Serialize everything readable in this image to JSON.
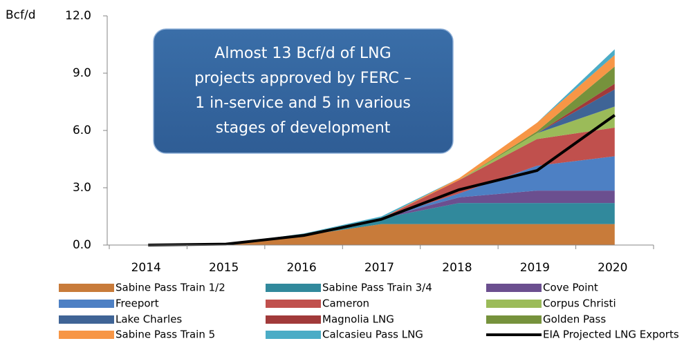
{
  "chart_data": {
    "type": "stacked_area",
    "y_unit": "Bcf/d",
    "annotation": [
      "Almost 13 Bcf/d of LNG",
      "projects approved by FERC –",
      "1 in-service and 5 in various",
      "stages of development"
    ],
    "categories": [
      "2014",
      "2015",
      "2016",
      "2017",
      "2018",
      "2019",
      "2020"
    ],
    "ylim": [
      0,
      12
    ],
    "yticks": [
      {
        "value": 0,
        "label": "0.0"
      },
      {
        "value": 3,
        "label": "3.0"
      },
      {
        "value": 6,
        "label": "6.0"
      },
      {
        "value": 9,
        "label": "9.0"
      },
      {
        "value": 12,
        "label": "12.0"
      }
    ],
    "series": [
      {
        "name": "Sabine Pass Train 1/2",
        "color": "#c87b3a",
        "values": [
          0,
          0.05,
          0.5,
          1.1,
          1.1,
          1.1,
          1.1
        ]
      },
      {
        "name": "Sabine Pass Train 3/4",
        "color": "#31899c",
        "values": [
          0,
          0,
          0.1,
          0.3,
          1.1,
          1.1,
          1.1
        ]
      },
      {
        "name": "Cove Point",
        "color": "#6b4f8f",
        "values": [
          0,
          0,
          0,
          0,
          0.3,
          0.65,
          0.65
        ]
      },
      {
        "name": "Freeport",
        "color": "#4d80c4",
        "values": [
          0,
          0,
          0,
          0,
          0.2,
          1.3,
          1.8
        ]
      },
      {
        "name": "Cameron",
        "color": "#c0504d",
        "values": [
          0,
          0,
          0,
          0,
          0.7,
          1.4,
          1.5
        ]
      },
      {
        "name": "Corpus Christi",
        "color": "#9bbb59",
        "values": [
          0,
          0,
          0,
          0,
          0,
          0.3,
          1.1
        ]
      },
      {
        "name": "Lake Charles",
        "color": "#3f6496",
        "values": [
          0,
          0,
          0,
          0,
          0,
          0,
          0.9
        ]
      },
      {
        "name": "Magnolia LNG",
        "color": "#a13a3a",
        "values": [
          0,
          0,
          0,
          0,
          0,
          0,
          0.3
        ]
      },
      {
        "name": "Golden Pass",
        "color": "#76923c",
        "values": [
          0,
          0,
          0,
          0,
          0,
          0.1,
          0.9
        ]
      },
      {
        "name": "Sabine Pass Train 5",
        "color": "#f79646",
        "values": [
          0,
          0,
          0,
          0,
          0.1,
          0.45,
          0.6
        ]
      },
      {
        "name": "Calcasieu Pass LNG",
        "color": "#4bacc6",
        "values": [
          0,
          0,
          0,
          0.1,
          0,
          0,
          0.3
        ]
      },
      {
        "name": "EIA Projected LNG Exports",
        "color": "#000000",
        "type": "line",
        "values": [
          0,
          0.05,
          0.5,
          1.35,
          2.9,
          3.9,
          6.8
        ]
      }
    ]
  }
}
